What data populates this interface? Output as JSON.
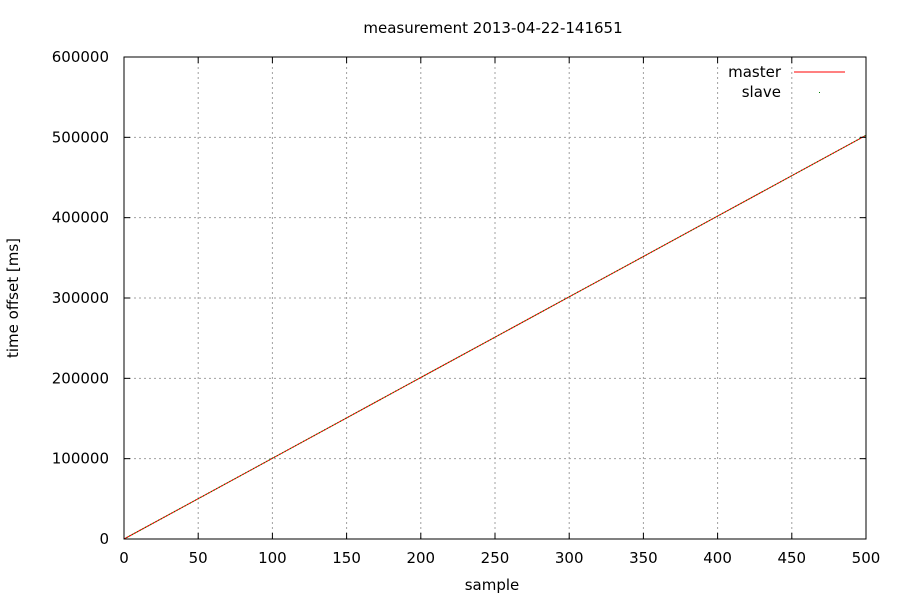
{
  "chart_data": {
    "type": "line",
    "title": "measurement 2013-04-22-141651",
    "xlabel": "sample",
    "ylabel": "time offset [ms]",
    "xlim": [
      0,
      500
    ],
    "ylim": [
      0,
      600000
    ],
    "xticks": [
      0,
      50,
      100,
      150,
      200,
      250,
      300,
      350,
      400,
      450,
      500
    ],
    "yticks": [
      0,
      100000,
      200000,
      300000,
      400000,
      500000,
      600000
    ],
    "grid": true,
    "legend_position": "top-right",
    "series": [
      {
        "name": "master",
        "color": "#ff0000",
        "style": "line",
        "x": [
          0,
          50,
          100,
          150,
          200,
          250,
          300,
          350,
          400,
          450,
          500
        ],
        "y": [
          0,
          50200,
          100500,
          150700,
          201000,
          251200,
          301500,
          351700,
          402000,
          452200,
          502500
        ]
      },
      {
        "name": "slave",
        "color": "#008000",
        "style": "dots",
        "x": [
          0,
          50,
          100,
          150,
          200,
          250,
          300,
          350,
          400,
          450,
          500
        ],
        "y": [
          0,
          50200,
          100500,
          150700,
          201000,
          251200,
          301500,
          351700,
          402000,
          452200,
          502500
        ]
      }
    ]
  }
}
